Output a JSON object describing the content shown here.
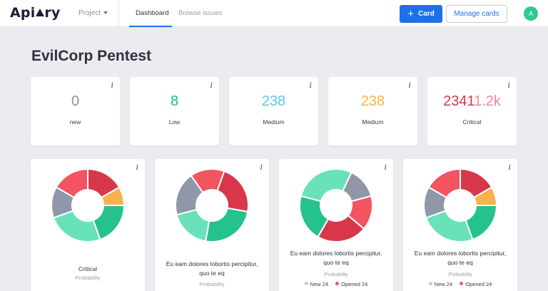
{
  "header": {
    "logo_text": "Api",
    "logo_text_end": "ry",
    "project_label": "Project",
    "tabs": [
      {
        "label": "Dashboard",
        "active": true
      },
      {
        "label": "Browse issues",
        "active": false
      }
    ],
    "card_button": "Card",
    "manage_button": "Manage cards",
    "avatar_letter": "A"
  },
  "page": {
    "title": "EvilCorp Pentest",
    "info_glyph": "i"
  },
  "stats": [
    {
      "value": "0",
      "label": "new"
    },
    {
      "value": "8",
      "label": "Low"
    },
    {
      "value": "238",
      "label": "Medium"
    },
    {
      "value": "238",
      "label": "Medium"
    },
    {
      "value": "2341",
      "value_extra": "1.2k",
      "label": "Critical"
    }
  ],
  "donut_cards": [
    {
      "title": "Critical",
      "subtitle": "Probability"
    },
    {
      "title": "Eu eam dolores lobortis percipitur, quo te eq",
      "subtitle": "Probability"
    },
    {
      "title": "Eu eam dolores lobortis percipitur, quo te eq",
      "subtitle": "Probabilty",
      "legend": [
        {
          "label": "New 24"
        },
        {
          "label": "Opened 24"
        }
      ]
    },
    {
      "title": "Eu eam dolores lobortis percipitur, quo te eq",
      "subtitle": "Probabilty",
      "legend": [
        {
          "label": "New 24"
        },
        {
          "label": "Opened 24"
        }
      ]
    }
  ],
  "colors": {
    "accent": "#1e70e8",
    "red": "#d8374b",
    "coral": "#f35461",
    "orange": "#f5b34a",
    "green": "#25c38b",
    "mint": "#69e2bb",
    "gray": "#8f97a8",
    "legend_gray": "#c6c9d0"
  },
  "icons": [
    "plus-icon",
    "chevron-down-icon",
    "info-icon"
  ]
}
